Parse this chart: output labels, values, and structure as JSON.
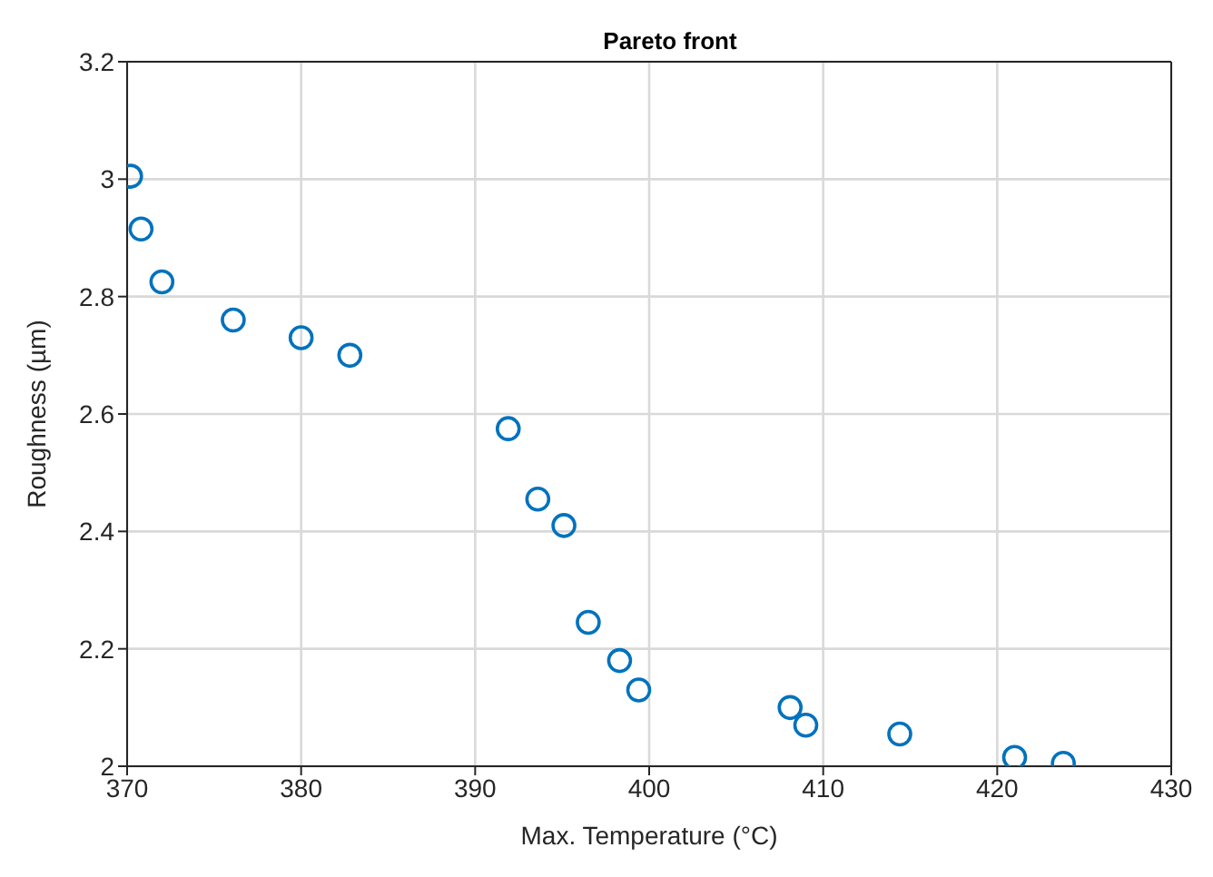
{
  "chart_data": {
    "type": "scatter",
    "title": "Pareto front",
    "xlabel": "Max. Temperature (°C)",
    "ylabel": "Roughness (µm)",
    "x": [
      370.2,
      370.8,
      372.0,
      376.1,
      380.0,
      382.8,
      391.9,
      393.6,
      395.1,
      396.5,
      398.3,
      399.4,
      408.1,
      409.0,
      414.4,
      421.0,
      423.8
    ],
    "values": [
      3.005,
      2.915,
      2.825,
      2.76,
      2.73,
      2.7,
      2.575,
      2.455,
      2.41,
      2.245,
      2.18,
      2.13,
      2.1,
      2.07,
      2.055,
      2.015,
      2.005
    ],
    "color": "#0072bd",
    "marker": "circle",
    "grid": true,
    "xlim": [
      370,
      430
    ],
    "xticks": [
      370,
      380,
      390,
      400,
      410,
      420,
      430
    ],
    "ylim": [
      2,
      3.2
    ],
    "yticks": [
      2,
      2.2,
      2.4,
      2.6,
      2.8,
      3,
      3.2
    ]
  }
}
